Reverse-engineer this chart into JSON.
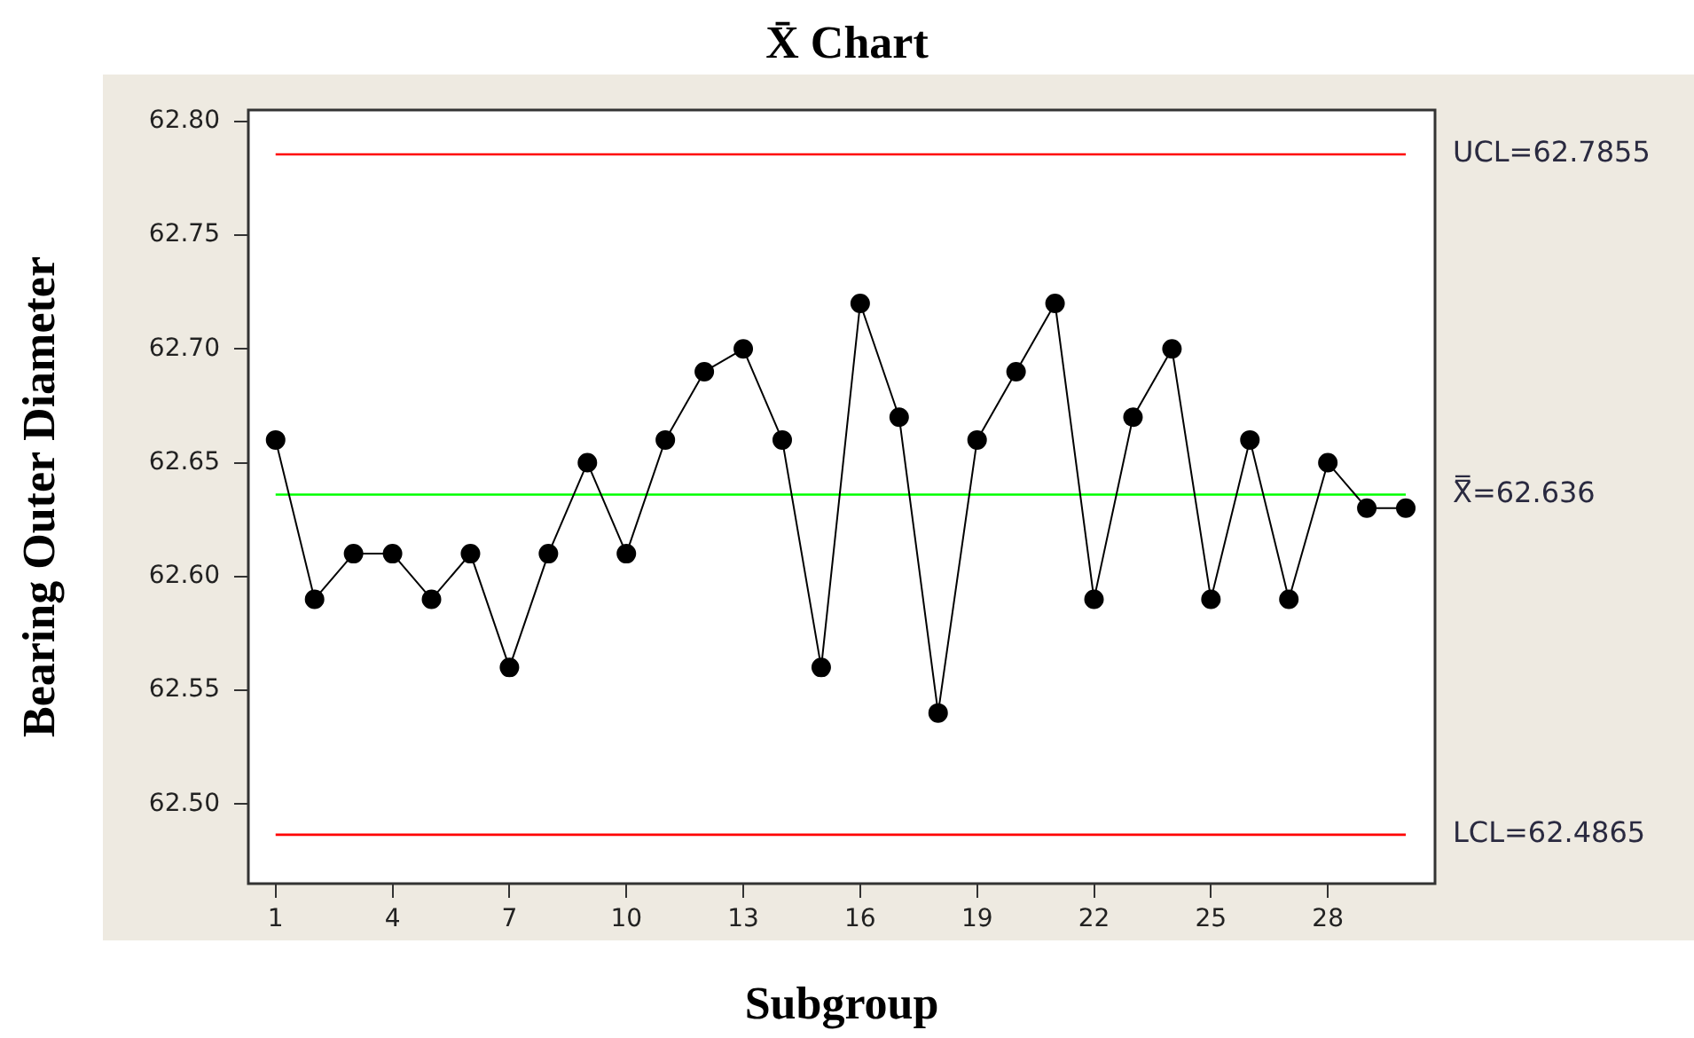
{
  "chart_data": {
    "type": "line",
    "title": "X̄ Chart",
    "xlabel": "Subgroup",
    "ylabel": "Bearing Outer Diameter",
    "x": [
      1,
      2,
      3,
      4,
      5,
      6,
      7,
      8,
      9,
      10,
      11,
      12,
      13,
      14,
      15,
      16,
      17,
      18,
      19,
      20,
      21,
      22,
      23,
      24,
      25,
      26,
      27,
      28,
      29,
      30
    ],
    "series": [
      {
        "color": "#000000",
        "values": [
          62.66,
          62.59,
          62.61,
          62.61,
          62.59,
          62.61,
          62.56,
          62.61,
          62.65,
          62.61,
          62.66,
          62.69,
          62.7,
          62.66,
          62.56,
          62.72,
          62.67,
          62.54,
          62.66,
          62.69,
          62.72,
          62.59,
          62.67,
          62.7,
          62.59,
          62.66,
          62.59,
          62.65,
          62.63,
          62.63
        ]
      }
    ],
    "xlim": [
      0.3,
      30.75
    ],
    "xticks": [
      1,
      4,
      7,
      10,
      13,
      16,
      19,
      22,
      25,
      28
    ],
    "ylim": [
      62.465,
      62.805
    ],
    "yticks": [
      {
        "value": 62.5,
        "label": "62.50"
      },
      {
        "value": 62.55,
        "label": "62.55"
      },
      {
        "value": 62.6,
        "label": "62.60"
      },
      {
        "value": 62.65,
        "label": "62.65"
      },
      {
        "value": 62.7,
        "label": "62.70"
      },
      {
        "value": 62.75,
        "label": "62.75"
      },
      {
        "value": 62.8,
        "label": "62.80"
      }
    ],
    "ref_lines": [
      {
        "axis": "y",
        "value": 62.7855,
        "label": "UCL=62.7855",
        "color": "#ff0000"
      },
      {
        "axis": "y",
        "value": 62.636,
        "label": "X̿=62.636",
        "color": "#00ff00"
      },
      {
        "axis": "y",
        "value": 62.4865,
        "label": "LCL=62.4865",
        "color": "#ff0000"
      }
    ],
    "grid": false,
    "legend": false,
    "marker": "circle",
    "line_style": "solid"
  }
}
